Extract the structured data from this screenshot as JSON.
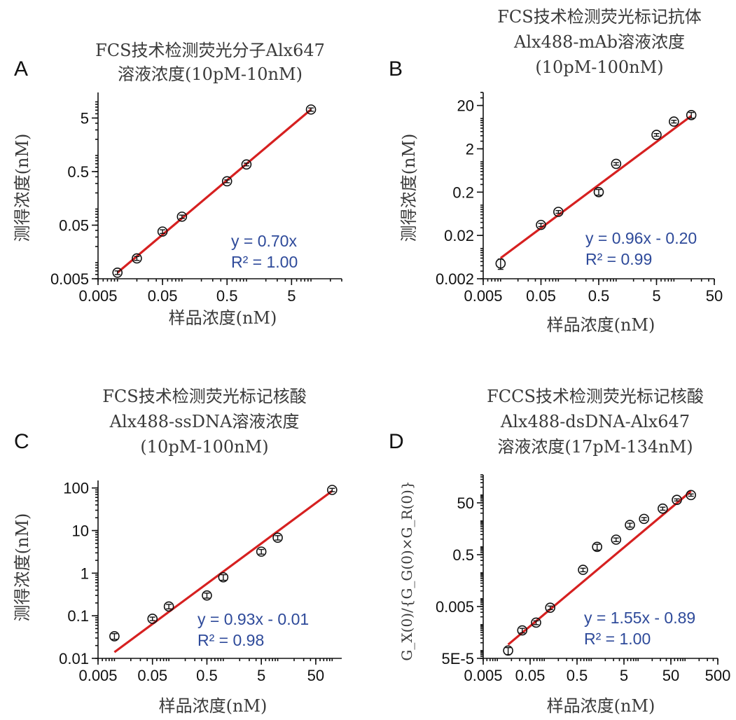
{
  "chart_data": [
    {
      "panel": "A",
      "type": "scatter",
      "title_lines": [
        "FCS技术检测荧光分子Alx647",
        "溶液浓度(10pM-10nM)"
      ],
      "xlabel": "样品浓度(nM)",
      "ylabel": "测得浓度(nM)",
      "xscale": "log",
      "yscale": "log",
      "xlim": [
        0.005,
        30
      ],
      "ylim": [
        0.005,
        15
      ],
      "xticks": [
        0.005,
        0.05,
        0.5,
        5
      ],
      "yticks": [
        0.005,
        0.05,
        0.5,
        5
      ],
      "xtick_labels": [
        "0.005",
        "0.05",
        "0.5",
        "5"
      ],
      "ytick_labels": [
        "0.005",
        "0.05",
        "0.5",
        "5"
      ],
      "points": [
        {
          "x": 0.01,
          "y": 0.0065,
          "err": 0.0005
        },
        {
          "x": 0.02,
          "y": 0.012,
          "err": 0.001
        },
        {
          "x": 0.05,
          "y": 0.038,
          "err": 0.003
        },
        {
          "x": 0.1,
          "y": 0.072,
          "err": 0.005
        },
        {
          "x": 0.5,
          "y": 0.33,
          "err": 0.02
        },
        {
          "x": 1,
          "y": 0.68,
          "err": 0.04
        },
        {
          "x": 10,
          "y": 7.2,
          "err": 0.5
        }
      ],
      "fit": {
        "x": [
          0.01,
          10
        ],
        "y": [
          0.0065,
          7.2
        ]
      },
      "equation": "y = 0.70x",
      "r2": "R² = 1.00"
    },
    {
      "panel": "B",
      "type": "scatter",
      "title_lines": [
        "FCS技术检测荧光标记抗体",
        "Alx488-mAb溶液浓度",
        "(10pM-100nM)"
      ],
      "xlabel": "样品浓度(nM)",
      "ylabel": "测得浓度(nM)",
      "xscale": "log",
      "yscale": "log",
      "xlim": [
        0.005,
        50
      ],
      "ylim": [
        0.002,
        40
      ],
      "xticks": [
        0.005,
        0.05,
        0.5,
        5,
        50
      ],
      "yticks": [
        0.002,
        0.02,
        0.2,
        2,
        20
      ],
      "xtick_labels": [
        "0.005",
        "0.05",
        "0.5",
        "5",
        "50"
      ],
      "ytick_labels": [
        "0.002",
        "0.02",
        "0.2",
        "2",
        "20"
      ],
      "points": [
        {
          "x": 0.01,
          "y": 0.0045,
          "err": 0.0012
        },
        {
          "x": 0.05,
          "y": 0.035,
          "err": 0.003
        },
        {
          "x": 0.1,
          "y": 0.07,
          "err": 0.005
        },
        {
          "x": 0.5,
          "y": 0.2,
          "err": 0.03
        },
        {
          "x": 1,
          "y": 0.9,
          "err": 0.06
        },
        {
          "x": 5,
          "y": 4.2,
          "err": 0.3
        },
        {
          "x": 10,
          "y": 8.5,
          "err": 0.6
        },
        {
          "x": 20,
          "y": 12.0,
          "err": 1.8
        }
      ],
      "fit": {
        "x": [
          0.01,
          20
        ],
        "y": [
          0.006,
          11.5
        ]
      },
      "equation": "y = 0.96x - 0.20",
      "r2": "R² = 0.99"
    },
    {
      "panel": "C",
      "type": "scatter",
      "title_lines": [
        "FCS技术检测荧光标记核酸",
        "Alx488-ssDNA溶液浓度",
        "(10pM-100nM)"
      ],
      "xlabel": "样品浓度(nM)",
      "ylabel": "测得浓度(nM)",
      "xscale": "log",
      "yscale": "log",
      "xlim": [
        0.005,
        150
      ],
      "ylim": [
        0.01,
        150
      ],
      "xticks": [
        0.005,
        0.05,
        0.5,
        5,
        50
      ],
      "yticks": [
        0.01,
        0.1,
        1,
        10,
        100
      ],
      "xtick_labels": [
        "0.005",
        "0.05",
        "0.5",
        "5",
        "50"
      ],
      "ytick_labels": [
        "0.01",
        "0.1",
        "1",
        "10",
        "100"
      ],
      "points": [
        {
          "x": 0.01,
          "y": 0.033,
          "err": 0.005
        },
        {
          "x": 0.05,
          "y": 0.085,
          "err": 0.008
        },
        {
          "x": 0.1,
          "y": 0.165,
          "err": 0.02
        },
        {
          "x": 0.5,
          "y": 0.3,
          "err": 0.04
        },
        {
          "x": 1,
          "y": 0.8,
          "err": 0.12
        },
        {
          "x": 5,
          "y": 3.2,
          "err": 0.4
        },
        {
          "x": 10,
          "y": 6.8,
          "err": 0.8
        },
        {
          "x": 100,
          "y": 90,
          "err": 8
        }
      ],
      "fit": {
        "x": [
          0.01,
          100
        ],
        "y": [
          0.014,
          85
        ]
      },
      "equation": "y = 0.93x - 0.01",
      "r2": "R² = 0.98"
    },
    {
      "panel": "D",
      "type": "scatter",
      "title_lines": [
        "FCCS技术检测荧光标记核酸",
        "Alx488-dsDNA-Alx647",
        "溶液浓度(17pM-134nM)"
      ],
      "xlabel": "样品浓度(nM)",
      "ylabel": "G_X(0)/{G_G(0)×G_R(0)}",
      "xscale": "log",
      "yscale": "log",
      "xlim": [
        0.005,
        500
      ],
      "ylim": [
        5e-05,
        600
      ],
      "xticks": [
        0.005,
        0.05,
        0.5,
        5,
        50,
        500
      ],
      "yticks": [
        5e-05,
        0.005,
        0.5,
        50
      ],
      "xtick_labels": [
        "0.005",
        "0.05",
        "0.5",
        "5",
        "50",
        "500"
      ],
      "ytick_labels": [
        "5E-5",
        "0.005",
        "0.5",
        "50"
      ],
      "points": [
        {
          "x": 0.017,
          "y": 0.0001,
          "err": 3e-05
        },
        {
          "x": 0.034,
          "y": 0.0006,
          "err": 0.00012
        },
        {
          "x": 0.067,
          "y": 0.0012,
          "err": 0.0002
        },
        {
          "x": 0.134,
          "y": 0.0045,
          "err": 0.0007
        },
        {
          "x": 0.67,
          "y": 0.13,
          "err": 0.02
        },
        {
          "x": 1.34,
          "y": 1.0,
          "err": 0.25
        },
        {
          "x": 3.4,
          "y": 1.9,
          "err": 0.3
        },
        {
          "x": 6.7,
          "y": 7.0,
          "err": 1.2
        },
        {
          "x": 13.4,
          "y": 12.0,
          "err": 1.5
        },
        {
          "x": 33.5,
          "y": 30.0,
          "err": 4
        },
        {
          "x": 67,
          "y": 65.0,
          "err": 6
        },
        {
          "x": 134,
          "y": 100.0,
          "err": 10
        }
      ],
      "fit": {
        "x": [
          0.017,
          134
        ],
        "y": [
          0.00017,
          140
        ]
      },
      "equation": "y = 1.55x - 0.89",
      "r2": "R² = 1.00"
    }
  ]
}
